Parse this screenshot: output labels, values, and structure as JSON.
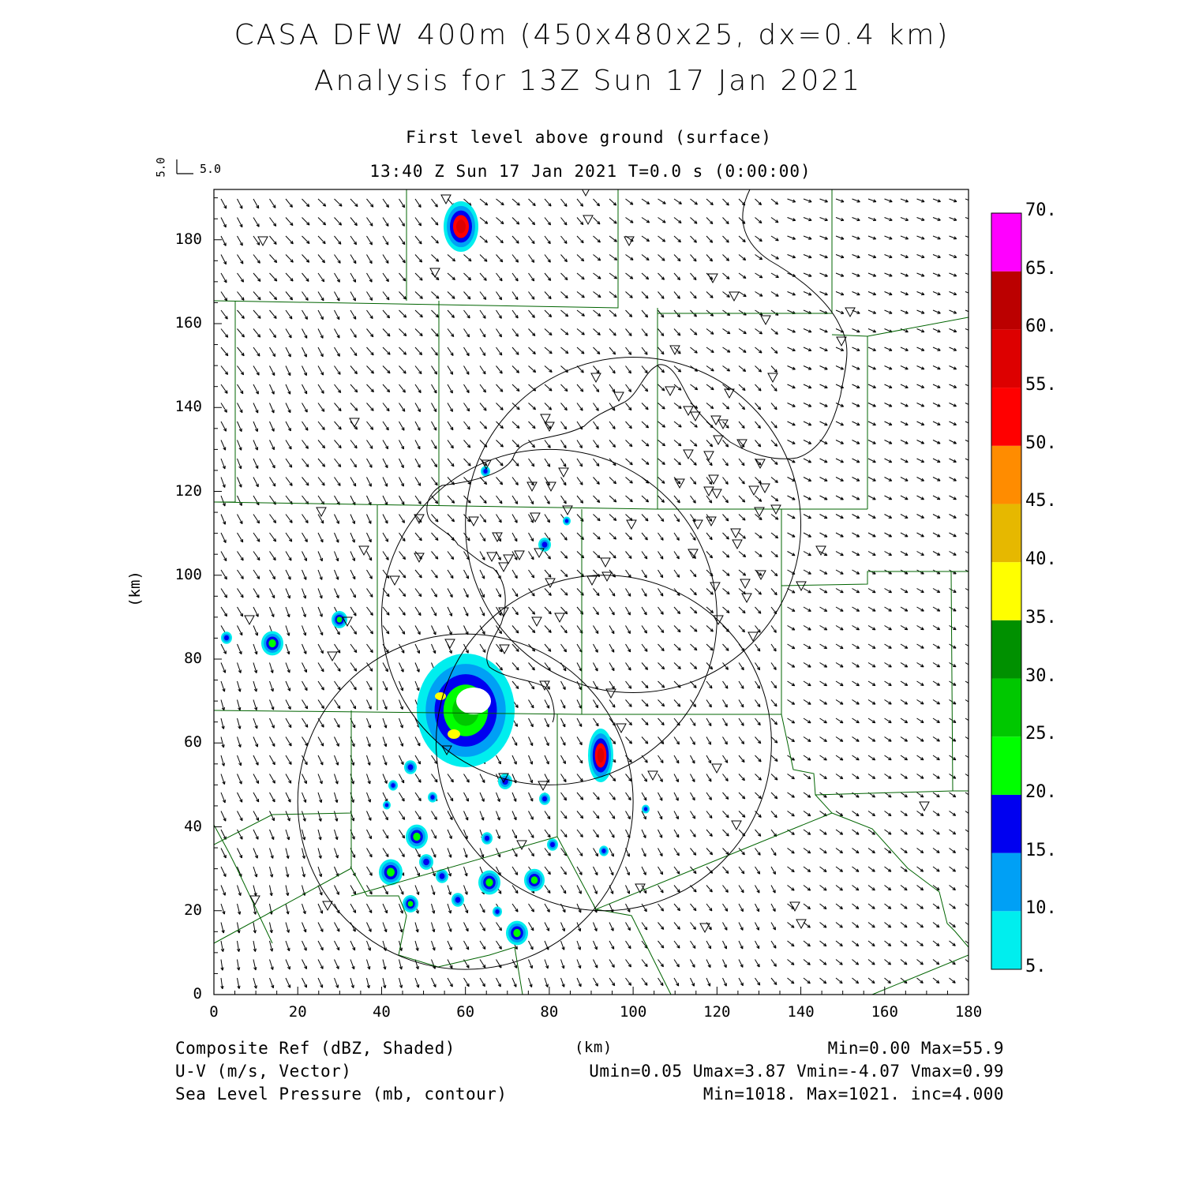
{
  "header": {
    "title_line1": "CASA DFW 400m (450x480x25, dx=0.4 km)",
    "title_line2": "Analysis for 13Z Sun 17 Jan 2021",
    "level": "First level above ground (surface)",
    "valid_time": "13:40 Z Sun 17 Jan 2021   T=0.0 s (0:00:00)"
  },
  "vector_scale": {
    "u_label": "5.0",
    "v_label": "5.0"
  },
  "axes": {
    "y_unit": "(km)",
    "x_unit": "(km)",
    "x_ticks": [
      "0",
      "20",
      "40",
      "60",
      "80",
      "100",
      "120",
      "140",
      "160",
      "180"
    ],
    "y_ticks": [
      "0",
      "20",
      "40",
      "60",
      "80",
      "100",
      "120",
      "140",
      "160",
      "180"
    ],
    "xlim": [
      0,
      180
    ],
    "ylim": [
      0,
      192
    ]
  },
  "colorbar": {
    "labels": [
      "5.",
      "10.",
      "15.",
      "20.",
      "25.",
      "30.",
      "35.",
      "40.",
      "45.",
      "50.",
      "55.",
      "60.",
      "65.",
      "70."
    ],
    "colors": [
      "#00eeee",
      "#00a0f5",
      "#0000f0",
      "#00ff00",
      "#00c800",
      "#009000",
      "#ffff00",
      "#e6b800",
      "#ff8c00",
      "#ff0000",
      "#dd0000",
      "#bb0000",
      "#ff00ff"
    ]
  },
  "footer": {
    "field1": "Composite Ref (dBZ, Shaded)",
    "field2": "U-V (m/s, Vector)",
    "field3": "Sea Level Pressure (mb, contour)",
    "stats1": "Min=0.00 Max=55.9",
    "stats2": "Umin=0.05 Umax=3.87 Vmin=-4.07 Vmax=0.99",
    "stats3": "Min=1018. Max=1021. inc=4.000"
  },
  "radar_rings": [
    {
      "center_km": [
        80,
        90
      ],
      "radius_km": 40
    },
    {
      "center_km": [
        100,
        112
      ],
      "radius_km": 40
    },
    {
      "center_km": [
        60,
        46
      ],
      "radius_km": 40
    },
    {
      "center_km": [
        93,
        60
      ],
      "radius_km": 40
    }
  ],
  "storm_cells": [
    {
      "center_km": [
        59,
        184
      ],
      "max_dbz": 55
    },
    {
      "center_km": [
        92.5,
        57
      ],
      "max_dbz": 55
    },
    {
      "center_km": [
        60,
        66
      ],
      "max_dbz": 40
    }
  ]
}
